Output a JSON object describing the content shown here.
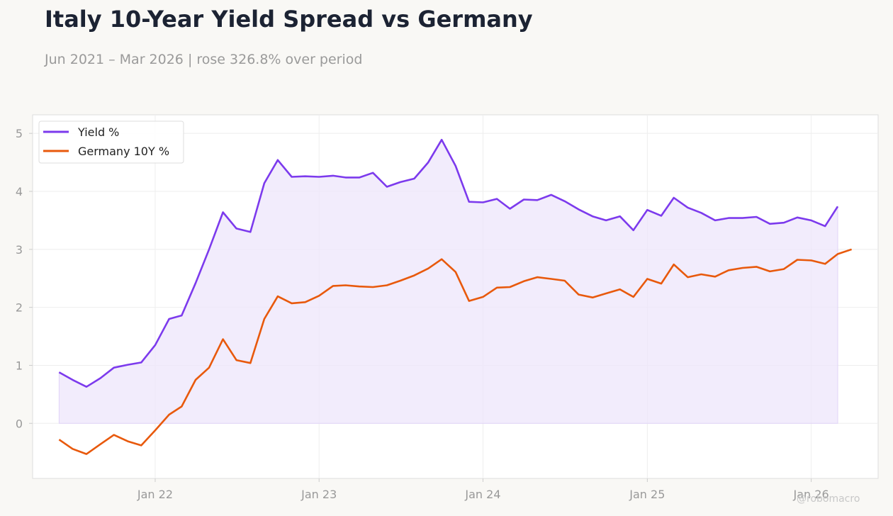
{
  "header": {
    "title": "Italy 10-Year Yield Spread vs Germany",
    "subtitle": "Jun 2021 – Mar 2026 | rose 326.8% over period"
  },
  "watermark": "@robomacro",
  "colors": {
    "italy": "#7c3aed",
    "germany": "#e8590c",
    "fill": "#ede5fb",
    "grid": "#eeeeee",
    "tick_text": "#999999",
    "plot_border": "#dddddd"
  },
  "chart_data": {
    "type": "line",
    "title": "Italy 10-Year Yield Spread vs Germany",
    "subtitle": "Jun 2021 – Mar 2026 | rose 326.8% over period",
    "xlabel": "",
    "ylabel": "",
    "x_ticks": [
      {
        "date": "2022-01-01",
        "label": "Jan 22"
      },
      {
        "date": "2023-01-01",
        "label": "Jan 23"
      },
      {
        "date": "2024-01-01",
        "label": "Jan 24"
      },
      {
        "date": "2025-01-01",
        "label": "Jan 25"
      },
      {
        "date": "2026-01-01",
        "label": "Jan 26"
      }
    ],
    "y_ticks": [
      0,
      1,
      2,
      3,
      4,
      5
    ],
    "xlim": [
      "2021-04-03",
      "2026-05-30"
    ],
    "ylim": [
      -0.95,
      5.32
    ],
    "grid": true,
    "legend": "top-left",
    "series": [
      {
        "name": "Yield %",
        "color": "#7c3aed",
        "fill_to_zero": true,
        "points": [
          [
            "2021-06-01",
            0.88
          ],
          [
            "2021-07-01",
            0.75
          ],
          [
            "2021-08-01",
            0.63
          ],
          [
            "2021-09-01",
            0.78
          ],
          [
            "2021-10-01",
            0.96
          ],
          [
            "2021-11-01",
            1.01
          ],
          [
            "2021-12-01",
            1.05
          ],
          [
            "2022-01-01",
            1.35
          ],
          [
            "2022-02-01",
            1.8
          ],
          [
            "2022-03-01",
            1.86
          ],
          [
            "2022-04-01",
            2.42
          ],
          [
            "2022-05-01",
            3.0
          ],
          [
            "2022-06-01",
            3.64
          ],
          [
            "2022-07-01",
            3.36
          ],
          [
            "2022-08-01",
            3.3
          ],
          [
            "2022-09-01",
            4.14
          ],
          [
            "2022-10-01",
            4.54
          ],
          [
            "2022-11-01",
            4.25
          ],
          [
            "2022-12-01",
            4.26
          ],
          [
            "2023-01-01",
            4.25
          ],
          [
            "2023-02-01",
            4.27
          ],
          [
            "2023-03-01",
            4.24
          ],
          [
            "2023-04-01",
            4.24
          ],
          [
            "2023-05-01",
            4.32
          ],
          [
            "2023-06-01",
            4.08
          ],
          [
            "2023-07-01",
            4.16
          ],
          [
            "2023-08-01",
            4.22
          ],
          [
            "2023-09-01",
            4.5
          ],
          [
            "2023-10-01",
            4.89
          ],
          [
            "2023-11-01",
            4.44
          ],
          [
            "2023-12-01",
            3.82
          ],
          [
            "2024-01-01",
            3.81
          ],
          [
            "2024-02-01",
            3.87
          ],
          [
            "2024-03-01",
            3.7
          ],
          [
            "2024-04-01",
            3.86
          ],
          [
            "2024-05-01",
            3.85
          ],
          [
            "2024-06-01",
            3.94
          ],
          [
            "2024-07-01",
            3.83
          ],
          [
            "2024-08-01",
            3.69
          ],
          [
            "2024-09-01",
            3.57
          ],
          [
            "2024-10-01",
            3.5
          ],
          [
            "2024-11-01",
            3.57
          ],
          [
            "2024-12-01",
            3.33
          ],
          [
            "2025-01-01",
            3.68
          ],
          [
            "2025-02-01",
            3.58
          ],
          [
            "2025-03-01",
            3.89
          ],
          [
            "2025-04-01",
            3.72
          ],
          [
            "2025-05-01",
            3.63
          ],
          [
            "2025-06-01",
            3.5
          ],
          [
            "2025-07-01",
            3.54
          ],
          [
            "2025-08-01",
            3.54
          ],
          [
            "2025-09-01",
            3.56
          ],
          [
            "2025-10-01",
            3.44
          ],
          [
            "2025-11-01",
            3.46
          ],
          [
            "2025-12-01",
            3.55
          ],
          [
            "2026-01-01",
            3.5
          ],
          [
            "2026-02-01",
            3.4
          ],
          [
            "2026-03-01",
            3.74
          ]
        ]
      },
      {
        "name": "Germany 10Y %",
        "color": "#e8590c",
        "fill_to_zero": false,
        "points": [
          [
            "2021-06-01",
            -0.28
          ],
          [
            "2021-07-01",
            -0.44
          ],
          [
            "2021-08-01",
            -0.53
          ],
          [
            "2021-09-01",
            -0.36
          ],
          [
            "2021-10-01",
            -0.2
          ],
          [
            "2021-11-01",
            -0.31
          ],
          [
            "2021-12-01",
            -0.38
          ],
          [
            "2022-01-01",
            -0.12
          ],
          [
            "2022-02-01",
            0.15
          ],
          [
            "2022-03-01",
            0.29
          ],
          [
            "2022-04-01",
            0.75
          ],
          [
            "2022-05-01",
            0.96
          ],
          [
            "2022-06-01",
            1.45
          ],
          [
            "2022-07-01",
            1.09
          ],
          [
            "2022-08-01",
            1.04
          ],
          [
            "2022-09-01",
            1.8
          ],
          [
            "2022-10-01",
            2.19
          ],
          [
            "2022-11-01",
            2.07
          ],
          [
            "2022-12-01",
            2.09
          ],
          [
            "2023-01-01",
            2.2
          ],
          [
            "2023-02-01",
            2.37
          ],
          [
            "2023-03-01",
            2.38
          ],
          [
            "2023-04-01",
            2.36
          ],
          [
            "2023-05-01",
            2.35
          ],
          [
            "2023-06-01",
            2.38
          ],
          [
            "2023-07-01",
            2.46
          ],
          [
            "2023-08-01",
            2.55
          ],
          [
            "2023-09-01",
            2.67
          ],
          [
            "2023-10-01",
            2.83
          ],
          [
            "2023-11-01",
            2.61
          ],
          [
            "2023-12-01",
            2.11
          ],
          [
            "2024-01-01",
            2.18
          ],
          [
            "2024-02-01",
            2.34
          ],
          [
            "2024-03-01",
            2.35
          ],
          [
            "2024-04-01",
            2.45
          ],
          [
            "2024-05-01",
            2.52
          ],
          [
            "2024-06-01",
            2.49
          ],
          [
            "2024-07-01",
            2.46
          ],
          [
            "2024-08-01",
            2.22
          ],
          [
            "2024-09-01",
            2.17
          ],
          [
            "2024-10-01",
            2.24
          ],
          [
            "2024-11-01",
            2.31
          ],
          [
            "2024-12-01",
            2.18
          ],
          [
            "2025-01-01",
            2.49
          ],
          [
            "2025-02-01",
            2.41
          ],
          [
            "2025-03-01",
            2.74
          ],
          [
            "2025-04-01",
            2.52
          ],
          [
            "2025-05-01",
            2.57
          ],
          [
            "2025-06-01",
            2.53
          ],
          [
            "2025-07-01",
            2.64
          ],
          [
            "2025-08-01",
            2.68
          ],
          [
            "2025-09-01",
            2.7
          ],
          [
            "2025-10-01",
            2.62
          ],
          [
            "2025-11-01",
            2.66
          ],
          [
            "2025-12-01",
            2.82
          ],
          [
            "2026-01-01",
            2.81
          ],
          [
            "2026-02-01",
            2.75
          ],
          [
            "2026-03-01",
            2.92
          ],
          [
            "2026-04-01",
            3.0
          ]
        ]
      }
    ]
  }
}
